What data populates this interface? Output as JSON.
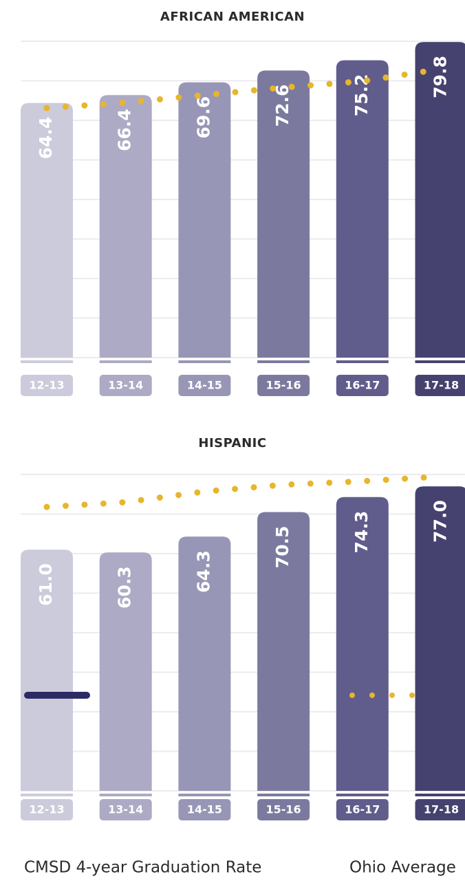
{
  "chart_data": [
    {
      "type": "bar",
      "title": "AFRICAN AMERICAN",
      "categories": [
        "12-13",
        "13-14",
        "14-15",
        "15-16",
        "16-17",
        "17-18"
      ],
      "series": [
        {
          "name": "CMSD 4-year Graduation Rate",
          "colors": [
            "#cccbdb",
            "#adaac5",
            "#9896b6",
            "#7b7a9e",
            "#605d8c",
            "#46426f"
          ],
          "values": [
            64.4,
            66.4,
            69.6,
            72.6,
            75.2,
            79.8
          ]
        },
        {
          "name": "Ohio Average",
          "type": "line",
          "color": "#e8b52c",
          "values": [
            63.1,
            64.5,
            66.4,
            68.3,
            69.9,
            73.0
          ]
        }
      ],
      "ylim": [
        0,
        80
      ],
      "yticks": [
        0,
        10,
        20,
        30,
        40,
        50,
        60,
        70,
        80
      ],
      "grid": true
    },
    {
      "type": "bar",
      "title": "HISPANIC",
      "categories": [
        "12-13",
        "13-14",
        "14-15",
        "15-16",
        "16-17",
        "17-18"
      ],
      "series": [
        {
          "colors": [
            "#cccbdb",
            "#adaac5",
            "#9896b6",
            "#7b7a9e",
            "#605d8c",
            "#46426f"
          ],
          "values": [
            61.0,
            60.3,
            64.3,
            70.5,
            74.3,
            77.0
          ],
          "value_labels": [
            "61.0",
            "60.3",
            "64.3",
            "70.5",
            "74.3",
            "77.0"
          ]
        },
        {
          "type": "line",
          "color": "#e8b52c",
          "values": [
            71.8,
            73.0,
            75.7,
            77.4,
            78.3,
            79.5
          ]
        }
      ],
      "ylim": [
        0,
        80
      ],
      "yticks": [
        0,
        10,
        20,
        30,
        40,
        50,
        60,
        70,
        80
      ],
      "grid": true
    }
  ]
}
